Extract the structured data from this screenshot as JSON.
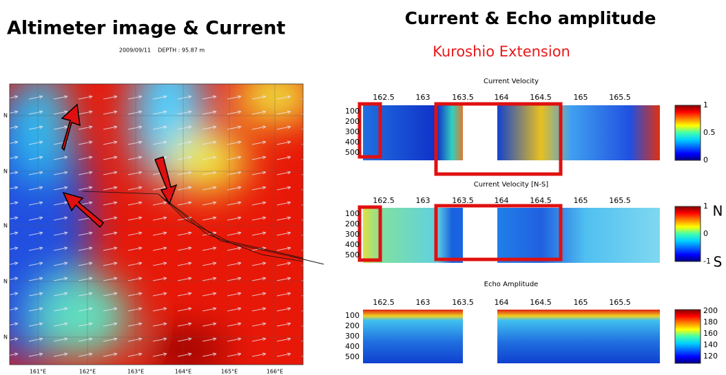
{
  "left": {
    "title": "Altimeter image & Current",
    "subtitle": "2009/09/11    DEPTH : 95.87 m",
    "x_labels": [
      "161°E",
      "162°E",
      "163°E",
      "164°E",
      "165°E",
      "166°E"
    ],
    "y_labels": [
      "N",
      "N",
      "N",
      "N",
      "N"
    ]
  },
  "right": {
    "title": "Current & Echo amplitude",
    "subtitle": "Kuroshio Extension",
    "panels": [
      {
        "title": "Current Velocity",
        "x_labels": [
          162.5,
          163,
          163.5,
          164,
          164.5,
          165,
          165.5
        ],
        "y_labels": [
          100,
          200,
          300,
          400,
          500
        ],
        "colorbar_labels": [
          1,
          0.5,
          0
        ]
      },
      {
        "title": "Current Velocity [N-S]",
        "x_labels": [
          162.5,
          163,
          163.5,
          164,
          164.5,
          165,
          165.5
        ],
        "y_labels": [
          100,
          200,
          300,
          400,
          500
        ],
        "colorbar_labels": [
          1,
          0,
          -1
        ],
        "side_labels": [
          "N",
          "S"
        ]
      },
      {
        "title": "Echo Amplitude",
        "x_labels": [
          162.5,
          163,
          163.5,
          164,
          164.5,
          165,
          165.5
        ],
        "y_labels": [
          100,
          200,
          300,
          400,
          500
        ],
        "colorbar_labels": [
          200,
          180,
          160,
          140,
          120
        ]
      }
    ]
  }
}
